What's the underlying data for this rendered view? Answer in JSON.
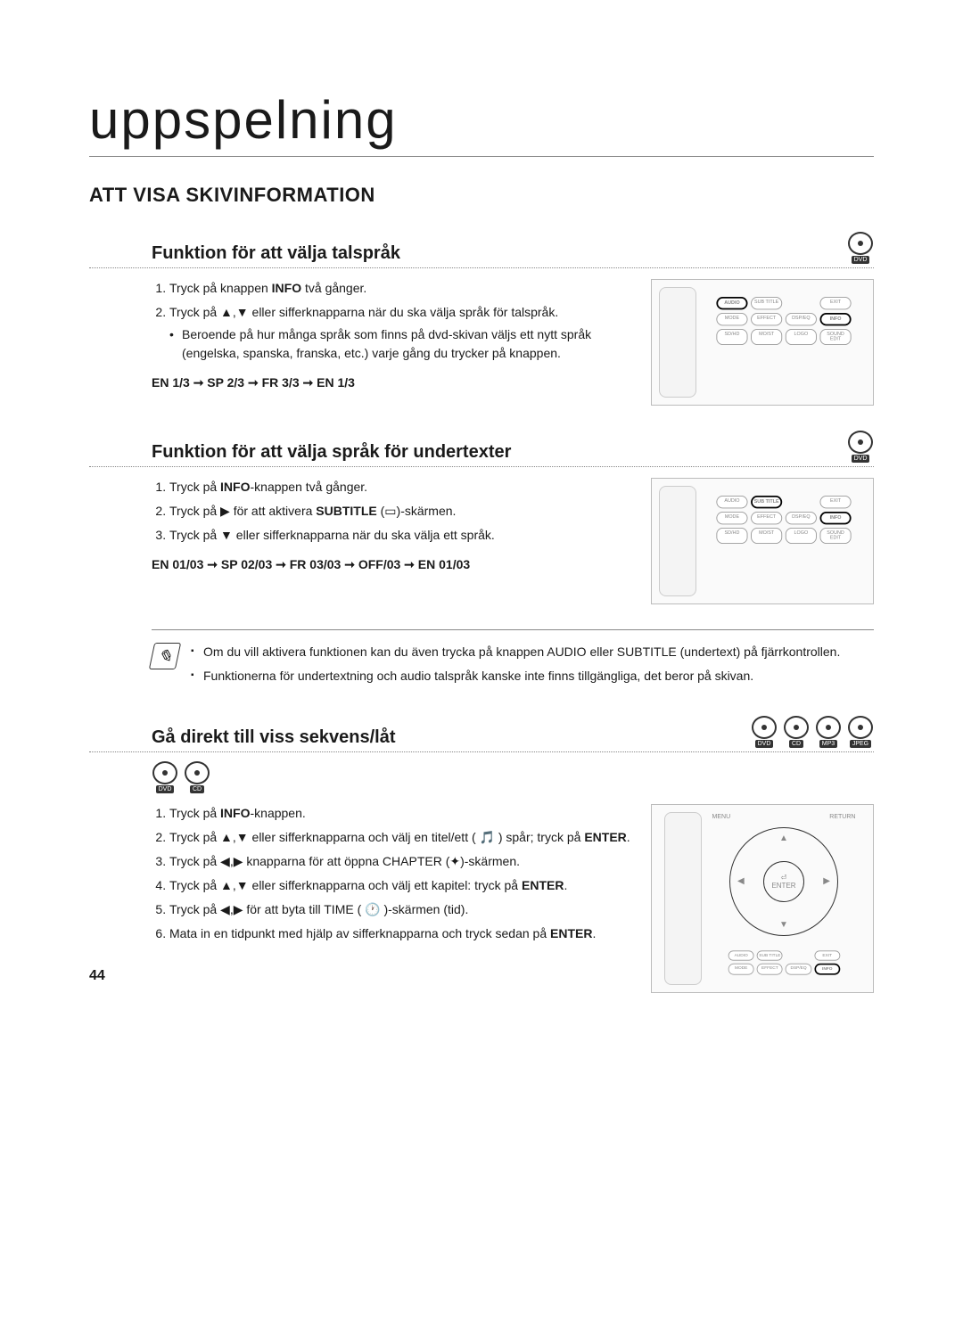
{
  "page_number": "44",
  "page_title": "uppspelning",
  "section_heading": "ATT VISA SKIVINFORMATION",
  "disc_labels": {
    "dvd": "DVD",
    "cd": "CD",
    "mp3": "MP3",
    "jpeg": "JPEG"
  },
  "sub1": {
    "heading": "Funktion för att välja talspråk",
    "step1_pre": "Tryck på knappen ",
    "step1_bold": "INFO",
    "step1_post": " två gånger.",
    "step2": "Tryck på ▲,▼ eller sifferknapparna när du ska välja språk för talspråk.",
    "step2_bullet": "Beroende på hur många språk som finns på dvd-skivan väljs ett nytt språk (engelska, spanska, franska, etc.) varje gång du trycker på knappen.",
    "sequence": "EN 1/3 ➞ SP 2/3 ➞ FR 3/3 ➞ EN 1/3"
  },
  "sub2": {
    "heading": "Funktion för att välja språk för undertexter",
    "step1_pre": "Tryck på ",
    "step1_bold": "INFO",
    "step1_post": "-knappen två gånger.",
    "step2_pre": "Tryck på ▶ för att aktivera ",
    "step2_bold": "SUBTITLE",
    "step2_post": " (▭)-skärmen.",
    "step3": "Tryck på ▼ eller sifferknapparna när du ska välja ett språk.",
    "sequence": "EN 01/03 ➞ SP 02/03 ➞ FR 03/03 ➞ OFF/03 ➞ EN 01/03"
  },
  "note": {
    "item1": "Om du vill aktivera funktionen kan du även trycka på knappen AUDIO eller SUBTITLE (undertext) på fjärrkontrollen.",
    "item2": "Funktionerna för undertextning och audio talspråk kanske inte finns tillgängliga, det beror på skivan."
  },
  "sub3": {
    "heading": "Gå direkt till viss sekvens/låt",
    "step1_pre": "Tryck på ",
    "step1_bold": "INFO",
    "step1_post": "-knappen.",
    "step2_pre": "Tryck på ▲,▼ eller sifferknapparna och välj en titel/ett ( 🎵 ) spår; tryck på ",
    "step2_bold": "ENTER",
    "step2_post": ".",
    "step3": "Tryck på ◀,▶ knapparna för att öppna CHAPTER (✦)-skärmen.",
    "step4_pre": "Tryck på ▲,▼ eller sifferknapparna och välj ett kapitel: tryck på ",
    "step4_bold": "ENTER",
    "step4_post": ".",
    "step5": "Tryck på ◀,▶ för att byta till TIME ( 🕐 )-skärmen (tid).",
    "step6_pre": "Mata in en tidpunkt med hjälp av sifferknapparna och tryck sedan på ",
    "step6_bold": "ENTER",
    "step6_post": "."
  },
  "remote_labels": {
    "audio": "AUDIO",
    "subtitle": "SUB TITLE",
    "exit": "EXIT",
    "mode": "MODE",
    "effect": "EFFECT",
    "dspeq": "DSP/EQ",
    "info": "INFO",
    "sdhd": "SD/HD",
    "mo_st": "MO/ST",
    "slow": "SLOW",
    "logo": "LOGO",
    "soundedit": "SOUND EDIT",
    "menu": "MENU",
    "return": "RETURN",
    "enter": "ENTER"
  }
}
